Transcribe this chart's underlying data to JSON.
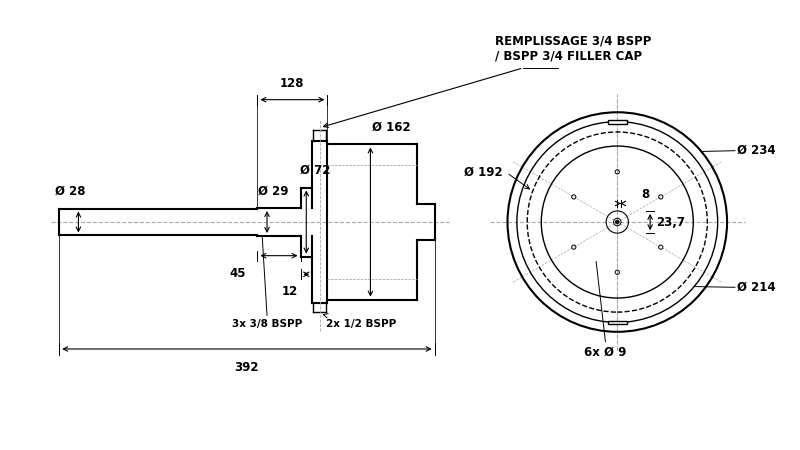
{
  "bg_color": "#ffffff",
  "lc": "#000000",
  "cc": "#aaaaaa",
  "fs": 8.5,
  "fs_small": 7.5,
  "annotations": {
    "remplissage": "REMPLISSAGE 3/4 BSPP\n/ BSPP 3/4 FILLER CAP",
    "d234": "Ø 234",
    "d192": "Ø 192",
    "d162": "Ø 162",
    "d72": "Ø 72",
    "d29": "Ø 29",
    "d28": "Ø 28",
    "d214": "Ø 214",
    "d23_7": "23,7",
    "d8": "8",
    "d9": "6x Ø 9",
    "dim128": "128",
    "dim45": "45",
    "dim12": "12",
    "dim392": "392",
    "bspp38": "3x 3/8 BSPP",
    "bspp12": "2x 1/2 BSPP"
  }
}
